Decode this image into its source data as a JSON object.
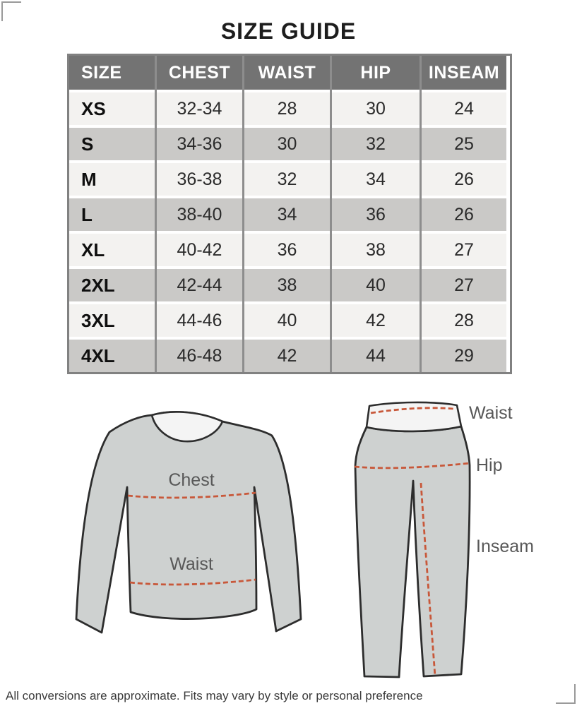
{
  "title": "SIZE GUIDE",
  "table": {
    "headers": [
      "SIZE",
      "CHEST",
      "WAIST",
      "HIP",
      "INSEAM"
    ],
    "rows": [
      [
        "XS",
        "32-34",
        "28",
        "30",
        "24"
      ],
      [
        "S",
        "34-36",
        "30",
        "32",
        "25"
      ],
      [
        "M",
        "36-38",
        "32",
        "34",
        "26"
      ],
      [
        "L",
        "38-40",
        "34",
        "36",
        "26"
      ],
      [
        "XL",
        "40-42",
        "36",
        "38",
        "27"
      ],
      [
        "2XL",
        "42-44",
        "38",
        "40",
        "27"
      ],
      [
        "3XL",
        "44-46",
        "40",
        "42",
        "28"
      ],
      [
        "4XL",
        "46-48",
        "42",
        "44",
        "29"
      ]
    ]
  },
  "diagrams": {
    "shirt": {
      "chest_label": "Chest",
      "waist_label": "Waist"
    },
    "leggings": {
      "waist_label": "Waist",
      "hip_label": "Hip",
      "inseam_label": "Inseam"
    }
  },
  "footer": {
    "note": "All conversions are approximate. Fits may vary by style or personal preference"
  },
  "colors": {
    "header_bg": "#737373",
    "header_text": "#ffffff",
    "row_light": "#f3f2f0",
    "row_dark": "#cac9c7",
    "divider": "#8d8d8d",
    "table_border": "#818181",
    "measure_line": "#c8583a",
    "garment_fill": "#ced1d0",
    "garment_outline": "#2d2d2d",
    "label_text": "#585858"
  }
}
